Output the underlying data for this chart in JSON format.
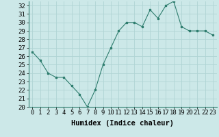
{
  "x": [
    0,
    1,
    2,
    3,
    4,
    5,
    6,
    7,
    8,
    9,
    10,
    11,
    12,
    13,
    14,
    15,
    16,
    17,
    18,
    19,
    20,
    21,
    22,
    23
  ],
  "y": [
    26.5,
    25.5,
    24.0,
    23.5,
    23.5,
    22.5,
    21.5,
    20.0,
    22.0,
    25.0,
    27.0,
    29.0,
    30.0,
    30.0,
    29.5,
    31.5,
    30.5,
    32.0,
    32.5,
    29.5,
    29.0,
    29.0,
    29.0,
    28.5
  ],
  "xlabel": "Humidex (Indice chaleur)",
  "line_color": "#2e7d6e",
  "marker_color": "#2e7d6e",
  "bg_color": "#cce8e8",
  "grid_color": "#b0d4d4",
  "ylim": [
    20,
    32.5
  ],
  "yticks": [
    20,
    21,
    22,
    23,
    24,
    25,
    26,
    27,
    28,
    29,
    30,
    31,
    32
  ],
  "xticks": [
    0,
    1,
    2,
    3,
    4,
    5,
    6,
    7,
    8,
    9,
    10,
    11,
    12,
    13,
    14,
    15,
    16,
    17,
    18,
    19,
    20,
    21,
    22,
    23
  ],
  "xlabel_fontsize": 7.5,
  "tick_fontsize": 6.5
}
